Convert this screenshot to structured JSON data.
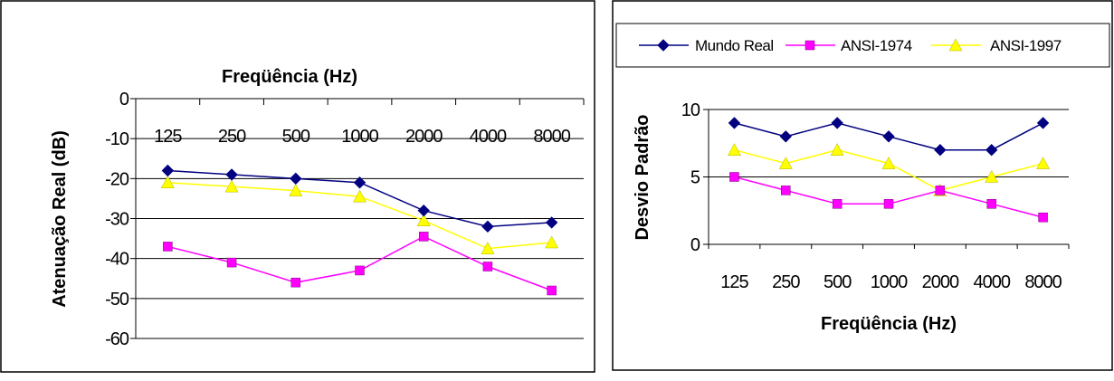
{
  "chart_data": [
    {
      "type": "line",
      "title": "Freqüência (Hz)",
      "xlabel": "",
      "ylabel": "Atenuação Real (dB)",
      "categories": [
        "125",
        "250",
        "500",
        "1000",
        "2000",
        "4000",
        "8000"
      ],
      "ylim": [
        -60,
        0
      ],
      "yticks": [
        0,
        -10,
        -20,
        -30,
        -40,
        -50,
        -60
      ],
      "grid": true,
      "legend": "none",
      "series": [
        {
          "values": [
            -18,
            -19,
            -20,
            -21,
            -28,
            -32,
            -31
          ],
          "color": "#000080",
          "marker": "diamond"
        },
        {
          "values": [
            -37,
            -41,
            -46,
            -43,
            -34.5,
            -42,
            -48
          ],
          "color": "#FF00FF",
          "marker": "square"
        },
        {
          "values": [
            -21,
            -22,
            -23,
            -24.5,
            -30.5,
            -37.5,
            -36
          ],
          "color": "#FFFF00",
          "marker": "triangle"
        }
      ]
    },
    {
      "type": "line",
      "title": "",
      "xlabel": "Freqüência (Hz)",
      "ylabel": "Desvio Padrão",
      "categories": [
        "125",
        "250",
        "500",
        "1000",
        "2000",
        "4000",
        "8000"
      ],
      "ylim": [
        0,
        10
      ],
      "yticks": [
        0,
        5,
        10
      ],
      "grid": true,
      "legend": "top",
      "series": [
        {
          "name": "Mundo Real",
          "values": [
            9,
            8,
            9,
            8,
            7,
            7,
            9
          ],
          "color": "#000080",
          "marker": "diamond"
        },
        {
          "name": "ANSI-1974",
          "values": [
            5,
            4,
            3,
            3,
            4,
            3,
            2
          ],
          "color": "#FF00FF",
          "marker": "square"
        },
        {
          "name": "ANSI-1997",
          "values": [
            7,
            6,
            7,
            6,
            4,
            5,
            6
          ],
          "color": "#FFFF00",
          "marker": "triangle"
        }
      ]
    }
  ]
}
